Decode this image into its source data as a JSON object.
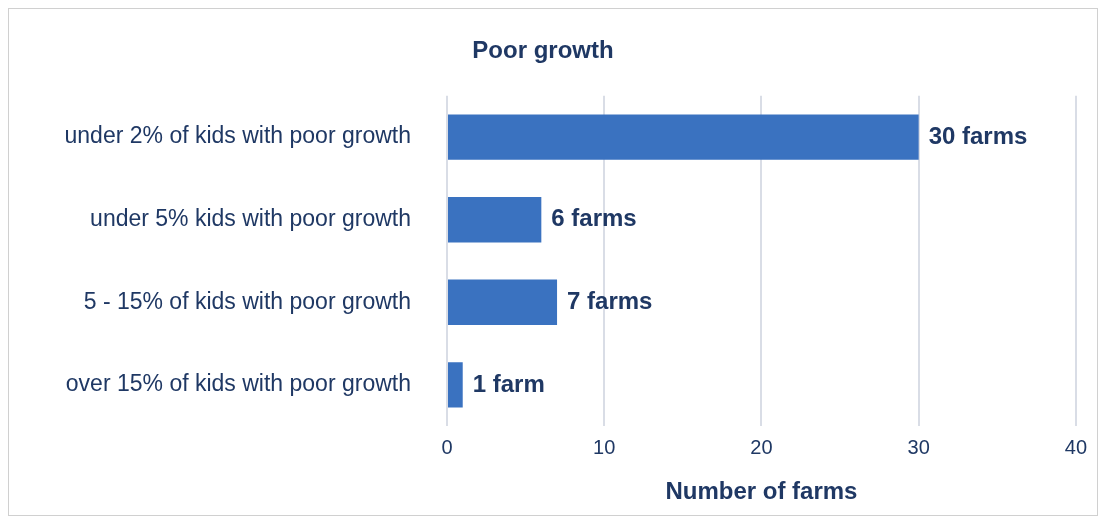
{
  "chart_data": {
    "type": "bar",
    "orientation": "horizontal",
    "title": "Poor growth",
    "xlabel": "Number of farms",
    "categories": [
      "under 2% of kids with poor growth",
      "under 5% kids with poor growth",
      "5 - 15% of kids with poor growth",
      "over 15% of kids with poor growth"
    ],
    "values": [
      30,
      6,
      7,
      1
    ],
    "color": "#3a72c0",
    "value_labels": [
      "30 farms",
      "6 farms",
      "7 farms",
      "1 farm"
    ],
    "xlim": [
      0,
      40
    ],
    "xticks": [
      0,
      10,
      20,
      30,
      40
    ],
    "grid": "x"
  }
}
